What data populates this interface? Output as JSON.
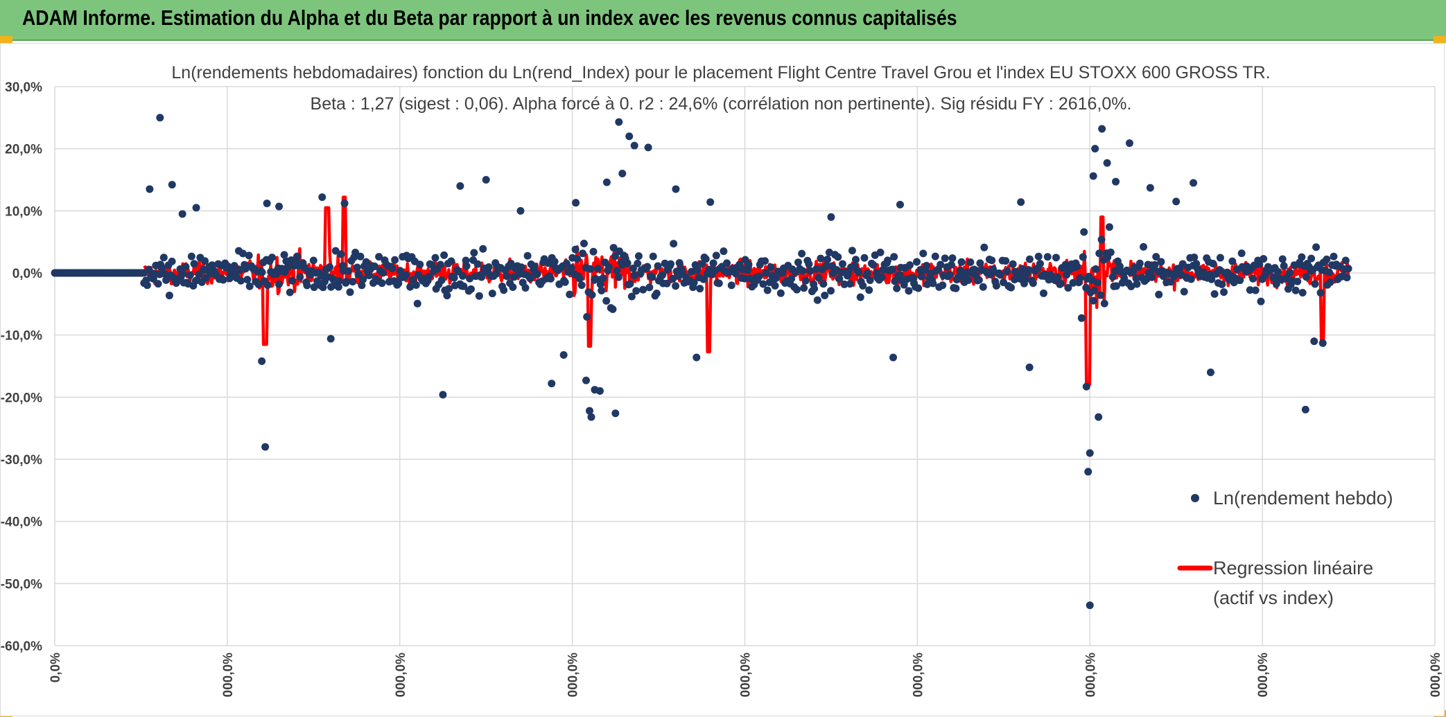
{
  "header": {
    "title": "ADAM Informe. Estimation du Alpha et du Beta par rapport à un index avec les revenus connus capitalisés"
  },
  "colors": {
    "banner": "#7dc57d",
    "points": "#203864",
    "regression": "#ff0000",
    "grid": "#d9d9d9"
  },
  "chart_data": {
    "type": "scatter",
    "title_line1": "Ln(rendements hebdomadaires) fonction du Ln(rend_Index) pour le placement Flight Centre Travel Grou et l'index EU STOXX 600 GROSS TR.",
    "title_line2": "Beta : 1,27 (sigest : 0,06). Alpha forcé à 0. r2 : 24,6% (corrélation non pertinente). Sig résidu FY : 2616,0%.",
    "ylim": [
      -60,
      30
    ],
    "y_ticks": [
      "30,0%",
      "20,0%",
      "10,0%",
      "0,0%",
      "-10,0%",
      "-20,0%",
      "-30,0%",
      "-40,0%",
      "-50,0%",
      "-60,0%"
    ],
    "x_ticks": [
      "0,0%",
      "000,0%",
      "000,0%",
      "000,0%",
      "000,0%",
      "000,0%",
      "000,0%",
      "000,0%",
      "000,0%"
    ],
    "x_range": [
      0,
      8
    ],
    "series": [
      {
        "name": "Ln(rendement hebdo)",
        "kind": "points"
      },
      {
        "name": "Regression linéaire",
        "name_line2": "(actif vs index)",
        "kind": "line"
      }
    ],
    "outliers": [
      [
        0.61,
        25.0
      ],
      [
        0.55,
        13.5
      ],
      [
        0.68,
        14.2
      ],
      [
        0.74,
        9.5
      ],
      [
        0.82,
        10.5
      ],
      [
        1.2,
        -14.2
      ],
      [
        1.22,
        -28.0
      ],
      [
        1.23,
        11.2
      ],
      [
        1.3,
        10.7
      ],
      [
        1.55,
        12.2
      ],
      [
        1.6,
        -10.6
      ],
      [
        1.68,
        11.2
      ],
      [
        2.25,
        -19.6
      ],
      [
        2.35,
        14.0
      ],
      [
        2.5,
        15.0
      ],
      [
        2.7,
        10.0
      ],
      [
        2.88,
        -17.8
      ],
      [
        2.95,
        -13.2
      ],
      [
        3.02,
        11.3
      ],
      [
        3.08,
        -17.3
      ],
      [
        3.1,
        -22.2
      ],
      [
        3.11,
        -23.2
      ],
      [
        3.13,
        -18.8
      ],
      [
        3.16,
        -19.0
      ],
      [
        3.2,
        14.6
      ],
      [
        3.25,
        -22.6
      ],
      [
        3.27,
        24.3
      ],
      [
        3.29,
        16.0
      ],
      [
        3.33,
        22.0
      ],
      [
        3.36,
        20.5
      ],
      [
        3.44,
        20.2
      ],
      [
        3.6,
        13.5
      ],
      [
        3.72,
        -13.6
      ],
      [
        3.8,
        11.4
      ],
      [
        4.5,
        9.0
      ],
      [
        4.86,
        -13.6
      ],
      [
        4.9,
        11.0
      ],
      [
        5.6,
        11.4
      ],
      [
        5.65,
        -15.2
      ],
      [
        5.98,
        -18.3
      ],
      [
        5.99,
        -32.0
      ],
      [
        6.0,
        -29.0
      ],
      [
        6.02,
        15.6
      ],
      [
        6.03,
        20.0
      ],
      [
        6.05,
        -23.2
      ],
      [
        6.07,
        23.2
      ],
      [
        6.1,
        17.7
      ],
      [
        6.15,
        14.7
      ],
      [
        6.23,
        20.9
      ],
      [
        6.35,
        13.7
      ],
      [
        6.5,
        11.5
      ],
      [
        6.6,
        14.5
      ],
      [
        6.7,
        -16.0
      ],
      [
        6.0,
        -53.5
      ],
      [
        7.25,
        -22.0
      ],
      [
        7.35,
        -11.3
      ],
      [
        7.3,
        -11.0
      ]
    ]
  }
}
